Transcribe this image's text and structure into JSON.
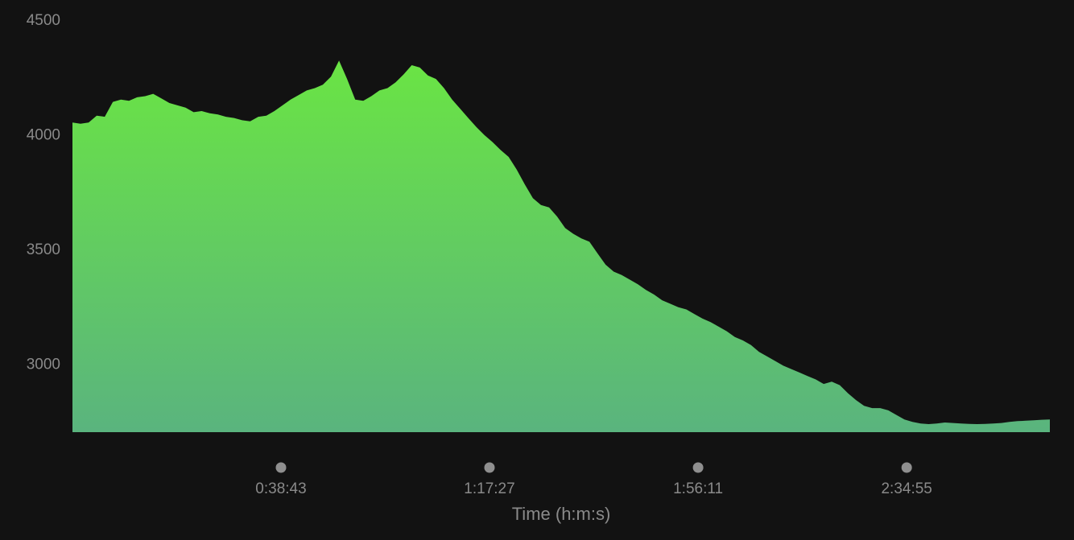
{
  "chart_data": {
    "type": "area",
    "title": "",
    "xlabel": "Time (h:m:s)",
    "ylabel": "",
    "x_unit": "seconds",
    "xlim": [
      0,
      10890
    ],
    "ylim": [
      2700,
      4500
    ],
    "y_ticks": [
      {
        "value": 3000,
        "label": "3000"
      },
      {
        "value": 3500,
        "label": "3500"
      },
      {
        "value": 4000,
        "label": "4000"
      },
      {
        "value": 4500,
        "label": "4500"
      }
    ],
    "x_ticks": [
      {
        "value": 2323,
        "label": "0:38:43"
      },
      {
        "value": 4647,
        "label": "1:17:27"
      },
      {
        "value": 6971,
        "label": "1:56:11"
      },
      {
        "value": 9295,
        "label": "2:34:55"
      }
    ],
    "grid": false,
    "legend": "none",
    "colors": {
      "background": "#121212",
      "fill_top": "#6ae444",
      "fill_bottom": "#5ab47e",
      "tick_text": "#8a8a8a",
      "tick_dot": "#8f8f8f"
    },
    "series": [
      {
        "x": [
          0,
          90,
          180,
          270,
          360,
          450,
          540,
          630,
          720,
          810,
          900,
          990,
          1080,
          1170,
          1260,
          1350,
          1440,
          1530,
          1620,
          1710,
          1800,
          1890,
          1980,
          2070,
          2160,
          2250,
          2340,
          2430,
          2520,
          2610,
          2700,
          2790,
          2880,
          2970,
          3060,
          3150,
          3240,
          3330,
          3420,
          3510,
          3600,
          3690,
          3780,
          3870,
          3960,
          4050,
          4140,
          4230,
          4320,
          4410,
          4500,
          4590,
          4680,
          4770,
          4860,
          4950,
          5040,
          5130,
          5220,
          5310,
          5400,
          5490,
          5580,
          5670,
          5760,
          5850,
          5940,
          6030,
          6120,
          6210,
          6300,
          6390,
          6480,
          6570,
          6660,
          6750,
          6840,
          6930,
          7020,
          7110,
          7200,
          7290,
          7380,
          7470,
          7560,
          7650,
          7740,
          7830,
          7920,
          8010,
          8100,
          8190,
          8280,
          8370,
          8460,
          8550,
          8640,
          8730,
          8820,
          8910,
          9000,
          9090,
          9180,
          9270,
          9360,
          9450,
          9540,
          9630,
          9720,
          9810,
          9900,
          9990,
          10080,
          10170,
          10260,
          10350,
          10440,
          10530,
          10620,
          10710,
          10800,
          10890
        ],
        "values": [
          4050,
          4045,
          4050,
          4080,
          4075,
          4140,
          4150,
          4145,
          4160,
          4165,
          4175,
          4155,
          4135,
          4125,
          4115,
          4095,
          4100,
          4090,
          4085,
          4075,
          4070,
          4060,
          4055,
          4075,
          4080,
          4100,
          4125,
          4150,
          4170,
          4190,
          4200,
          4215,
          4250,
          4320,
          4240,
          4150,
          4145,
          4165,
          4190,
          4200,
          4225,
          4260,
          4300,
          4290,
          4255,
          4240,
          4200,
          4150,
          4110,
          4070,
          4030,
          3995,
          3965,
          3930,
          3900,
          3845,
          3780,
          3720,
          3690,
          3680,
          3640,
          3590,
          3565,
          3545,
          3530,
          3480,
          3430,
          3400,
          3385,
          3365,
          3345,
          3320,
          3300,
          3275,
          3260,
          3245,
          3235,
          3215,
          3195,
          3180,
          3160,
          3140,
          3115,
          3100,
          3080,
          3050,
          3030,
          3010,
          2990,
          2975,
          2960,
          2945,
          2930,
          2910,
          2920,
          2905,
          2870,
          2840,
          2815,
          2805,
          2805,
          2795,
          2775,
          2755,
          2745,
          2738,
          2735,
          2738,
          2742,
          2740,
          2738,
          2736,
          2735,
          2736,
          2738,
          2740,
          2745,
          2748,
          2750,
          2752,
          2754,
          2755
        ]
      }
    ]
  }
}
